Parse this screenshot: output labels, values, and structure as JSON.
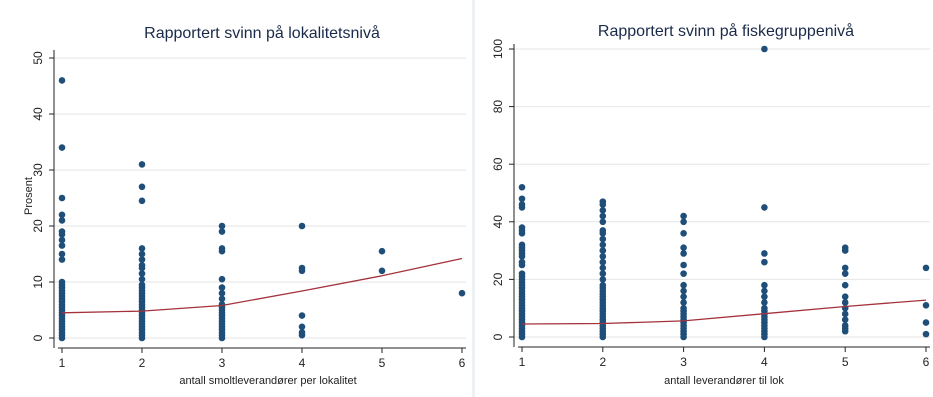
{
  "chart_data": [
    {
      "type": "scatter",
      "title": "Rapportert svinn på lokalitetsnivå",
      "xlabel": "antall smoltleverandører per lokalitet",
      "ylabel": "Prosent",
      "xlim": [
        1,
        6
      ],
      "ylim": [
        0,
        50
      ],
      "xticks": [
        1,
        2,
        3,
        4,
        5,
        6
      ],
      "yticks": [
        0,
        10,
        20,
        30,
        40,
        50
      ],
      "grid": true,
      "series": [
        {
          "kind": "points",
          "points": [
            [
              1,
              46
            ],
            [
              1,
              34
            ],
            [
              1,
              25
            ],
            [
              1,
              22
            ],
            [
              1,
              21
            ],
            [
              1,
              19
            ],
            [
              1,
              18.5
            ],
            [
              1,
              17.5
            ],
            [
              1,
              16.5
            ],
            [
              1,
              15
            ],
            [
              1,
              14
            ],
            [
              1,
              10
            ],
            [
              1,
              9.5
            ],
            [
              1,
              9
            ],
            [
              1,
              8.5
            ],
            [
              1,
              8
            ],
            [
              1,
              7.5
            ],
            [
              1,
              7
            ],
            [
              1,
              6.5
            ],
            [
              1,
              6
            ],
            [
              1,
              5.5
            ],
            [
              1,
              5
            ],
            [
              1,
              4.5
            ],
            [
              1,
              4
            ],
            [
              1,
              3.5
            ],
            [
              1,
              3
            ],
            [
              1,
              2.5
            ],
            [
              1,
              2
            ],
            [
              1,
              1.5
            ],
            [
              1,
              1
            ],
            [
              1,
              0.5
            ],
            [
              1,
              0
            ],
            [
              2,
              31
            ],
            [
              2,
              27
            ],
            [
              2,
              24.5
            ],
            [
              2,
              16
            ],
            [
              2,
              15
            ],
            [
              2,
              14
            ],
            [
              2,
              13
            ],
            [
              2,
              12.5
            ],
            [
              2,
              11.5
            ],
            [
              2,
              10.5
            ],
            [
              2,
              9.5
            ],
            [
              2,
              9
            ],
            [
              2,
              8.5
            ],
            [
              2,
              8
            ],
            [
              2,
              7.5
            ],
            [
              2,
              7
            ],
            [
              2,
              6.5
            ],
            [
              2,
              6
            ],
            [
              2,
              5.5
            ],
            [
              2,
              5
            ],
            [
              2,
              4.5
            ],
            [
              2,
              4
            ],
            [
              2,
              3.5
            ],
            [
              2,
              3
            ],
            [
              2,
              2.5
            ],
            [
              2,
              2
            ],
            [
              2,
              1.5
            ],
            [
              2,
              1
            ],
            [
              2,
              0.5
            ],
            [
              2,
              0
            ],
            [
              3,
              20
            ],
            [
              3,
              19
            ],
            [
              3,
              16
            ],
            [
              3,
              15.5
            ],
            [
              3,
              10.5
            ],
            [
              3,
              9
            ],
            [
              3,
              8
            ],
            [
              3,
              7
            ],
            [
              3,
              6
            ],
            [
              3,
              5.5
            ],
            [
              3,
              5
            ],
            [
              3,
              4.5
            ],
            [
              3,
              4
            ],
            [
              3,
              3.5
            ],
            [
              3,
              3
            ],
            [
              3,
              2.5
            ],
            [
              3,
              2
            ],
            [
              3,
              1.5
            ],
            [
              3,
              1
            ],
            [
              3,
              0.5
            ],
            [
              3,
              0
            ],
            [
              4,
              20
            ],
            [
              4,
              12.5
            ],
            [
              4,
              12
            ],
            [
              4,
              4
            ],
            [
              4,
              2
            ],
            [
              4,
              1
            ],
            [
              4,
              0.5
            ],
            [
              5,
              15.5
            ],
            [
              5,
              12
            ],
            [
              6,
              8
            ]
          ]
        },
        {
          "kind": "fitted-line",
          "points": [
            [
              1,
              4.5
            ],
            [
              2,
              4.8
            ],
            [
              3,
              5.8
            ],
            [
              4,
              8.4
            ],
            [
              5,
              11.1
            ],
            [
              6,
              14.2
            ]
          ]
        }
      ]
    },
    {
      "type": "scatter",
      "title": "Rapportert svinn på fiskegruppenivå",
      "xlabel": "antall leverandører til lok",
      "ylabel": "",
      "xlim": [
        1,
        6
      ],
      "ylim": [
        0,
        100
      ],
      "xticks": [
        1,
        2,
        3,
        4,
        5,
        6
      ],
      "yticks": [
        0,
        20,
        40,
        60,
        80,
        100
      ],
      "grid": true,
      "series": [
        {
          "kind": "points",
          "points": [
            [
              1,
              52
            ],
            [
              1,
              48
            ],
            [
              1,
              46
            ],
            [
              1,
              45
            ],
            [
              1,
              38
            ],
            [
              1,
              37
            ],
            [
              1,
              36
            ],
            [
              1,
              32
            ],
            [
              1,
              31
            ],
            [
              1,
              30
            ],
            [
              1,
              29
            ],
            [
              1,
              28
            ],
            [
              1,
              26
            ],
            [
              1,
              25
            ],
            [
              1,
              22
            ],
            [
              1,
              21
            ],
            [
              1,
              20
            ],
            [
              1,
              19
            ],
            [
              1,
              18
            ],
            [
              1,
              17
            ],
            [
              1,
              16
            ],
            [
              1,
              15
            ],
            [
              1,
              14
            ],
            [
              1,
              13
            ],
            [
              1,
              12
            ],
            [
              1,
              11
            ],
            [
              1,
              10
            ],
            [
              1,
              9
            ],
            [
              1,
              8
            ],
            [
              1,
              7
            ],
            [
              1,
              6
            ],
            [
              1,
              5
            ],
            [
              1,
              4
            ],
            [
              1,
              3
            ],
            [
              1,
              2
            ],
            [
              1,
              1
            ],
            [
              1,
              0
            ],
            [
              2,
              47
            ],
            [
              2,
              46
            ],
            [
              2,
              44
            ],
            [
              2,
              42
            ],
            [
              2,
              40
            ],
            [
              2,
              37
            ],
            [
              2,
              36
            ],
            [
              2,
              34
            ],
            [
              2,
              32
            ],
            [
              2,
              30
            ],
            [
              2,
              28
            ],
            [
              2,
              26
            ],
            [
              2,
              24
            ],
            [
              2,
              22
            ],
            [
              2,
              20
            ],
            [
              2,
              18
            ],
            [
              2,
              17
            ],
            [
              2,
              16
            ],
            [
              2,
              15
            ],
            [
              2,
              14
            ],
            [
              2,
              13
            ],
            [
              2,
              12
            ],
            [
              2,
              11
            ],
            [
              2,
              10
            ],
            [
              2,
              9
            ],
            [
              2,
              8
            ],
            [
              2,
              7
            ],
            [
              2,
              6
            ],
            [
              2,
              5
            ],
            [
              2,
              4
            ],
            [
              2,
              3
            ],
            [
              2,
              2
            ],
            [
              2,
              1
            ],
            [
              2,
              0
            ],
            [
              3,
              42
            ],
            [
              3,
              40
            ],
            [
              3,
              36
            ],
            [
              3,
              31
            ],
            [
              3,
              29
            ],
            [
              3,
              25
            ],
            [
              3,
              22
            ],
            [
              3,
              18
            ],
            [
              3,
              16
            ],
            [
              3,
              14
            ],
            [
              3,
              12
            ],
            [
              3,
              10
            ],
            [
              3,
              9
            ],
            [
              3,
              8
            ],
            [
              3,
              7
            ],
            [
              3,
              6
            ],
            [
              3,
              5
            ],
            [
              3,
              4
            ],
            [
              3,
              3
            ],
            [
              3,
              2
            ],
            [
              3,
              1
            ],
            [
              3,
              0
            ],
            [
              4,
              100
            ],
            [
              4,
              45
            ],
            [
              4,
              29
            ],
            [
              4,
              26
            ],
            [
              4,
              18
            ],
            [
              4,
              16
            ],
            [
              4,
              14
            ],
            [
              4,
              12
            ],
            [
              4,
              10
            ],
            [
              4,
              9
            ],
            [
              4,
              8
            ],
            [
              4,
              7
            ],
            [
              4,
              6
            ],
            [
              4,
              5
            ],
            [
              4,
              4
            ],
            [
              4,
              3
            ],
            [
              4,
              2
            ],
            [
              4,
              1
            ],
            [
              4,
              0
            ],
            [
              5,
              31
            ],
            [
              5,
              30
            ],
            [
              5,
              24
            ],
            [
              5,
              22
            ],
            [
              5,
              18
            ],
            [
              5,
              14
            ],
            [
              5,
              12
            ],
            [
              5,
              10
            ],
            [
              5,
              8
            ],
            [
              5,
              6
            ],
            [
              5,
              4
            ],
            [
              5,
              3
            ],
            [
              5,
              2
            ],
            [
              6,
              24
            ],
            [
              6,
              11
            ],
            [
              6,
              5
            ],
            [
              6,
              1
            ]
          ]
        },
        {
          "kind": "fitted-line",
          "points": [
            [
              1,
              4.5
            ],
            [
              2,
              4.7
            ],
            [
              3,
              5.6
            ],
            [
              4,
              8.1
            ],
            [
              5,
              10.6
            ],
            [
              6,
              12.8
            ]
          ]
        }
      ]
    }
  ]
}
